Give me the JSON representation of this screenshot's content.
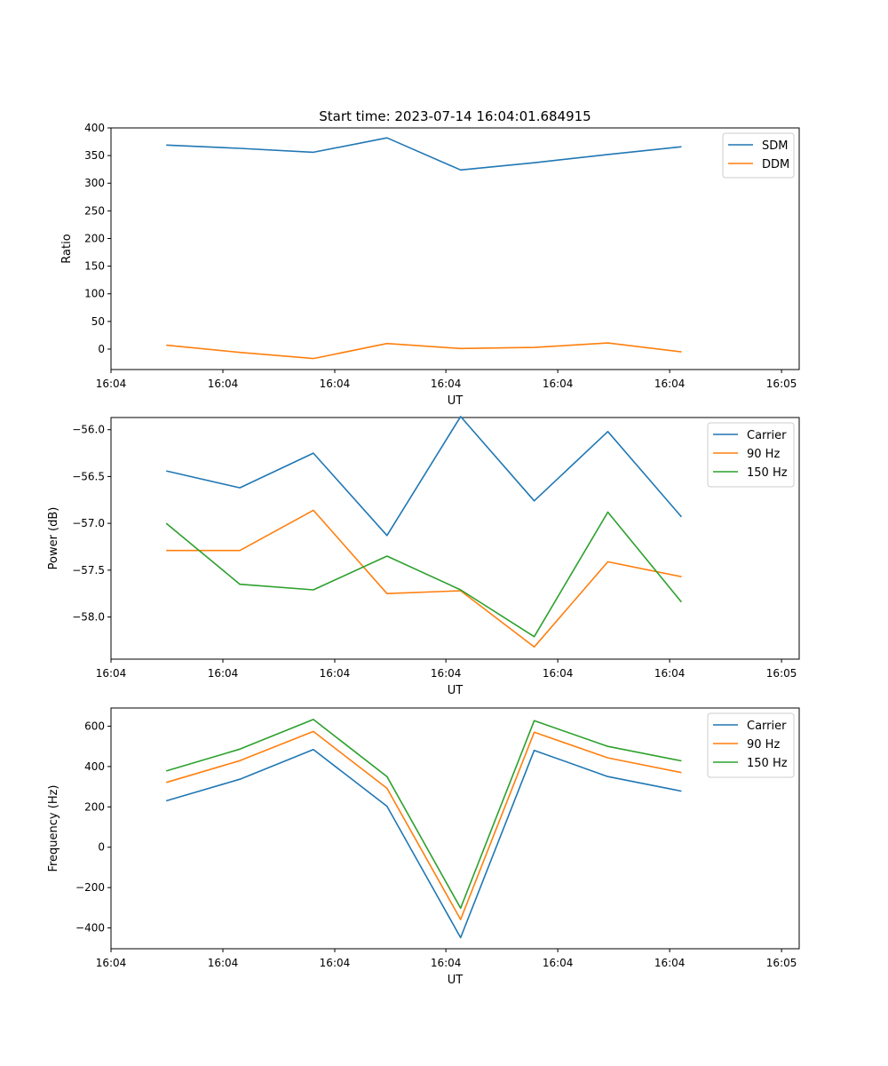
{
  "figure": {
    "title": "Start time: 2023-07-14 16:04:01.684915"
  },
  "colors": {
    "blue": "#1f77b4",
    "orange": "#ff7f0e",
    "green": "#2ca02c"
  },
  "chart_data": [
    {
      "type": "line",
      "title": "Start time: 2023-07-14 16:04:01.684915",
      "xlabel": "UT",
      "ylabel": "Ratio",
      "x": [
        0,
        1,
        2,
        3,
        4,
        5,
        6,
        7
      ],
      "xlim": [
        -0.75,
        8.6
      ],
      "xticks": [
        -0.75,
        0.77,
        2.29,
        3.8,
        5.32,
        6.84,
        8.36
      ],
      "xtick_labels": [
        "16:04",
        "16:04",
        "16:04",
        "16:04",
        "16:04",
        "16:04",
        "16:05"
      ],
      "ylim": [
        -37,
        400
      ],
      "yticks": [
        0,
        50,
        100,
        150,
        200,
        250,
        300,
        350,
        400
      ],
      "series": [
        {
          "name": "SDM",
          "color": "#1f77b4",
          "values": [
            369,
            363,
            356,
            382,
            324,
            337,
            352,
            366
          ]
        },
        {
          "name": "DDM",
          "color": "#ff7f0e",
          "values": [
            7,
            -6,
            -17,
            10,
            1,
            3,
            11,
            -5
          ]
        }
      ],
      "legend": "top-right"
    },
    {
      "type": "line",
      "title": "",
      "xlabel": "UT",
      "ylabel": "Power (dB)",
      "x": [
        0,
        1,
        2,
        3,
        4,
        5,
        6,
        7
      ],
      "xlim": [
        -0.75,
        8.6
      ],
      "xticks": [
        -0.75,
        0.77,
        2.29,
        3.8,
        5.32,
        6.84,
        8.36
      ],
      "xtick_labels": [
        "16:04",
        "16:04",
        "16:04",
        "16:04",
        "16:04",
        "16:04",
        "16:05"
      ],
      "ylim": [
        -58.45,
        -55.87
      ],
      "yticks": [
        -58.0,
        -57.5,
        -57.0,
        -56.5,
        -56.0
      ],
      "ytick_labels": [
        "−58.0",
        "−57.5",
        "−57.0",
        "−56.5",
        "−56.0"
      ],
      "series": [
        {
          "name": "Carrier",
          "color": "#1f77b4",
          "values": [
            -56.44,
            -56.62,
            -56.25,
            -57.13,
            -55.86,
            -56.76,
            -56.02,
            -56.93
          ]
        },
        {
          "name": "90 Hz",
          "color": "#ff7f0e",
          "values": [
            -57.29,
            -57.29,
            -56.86,
            -57.75,
            -57.72,
            -58.32,
            -57.41,
            -57.57
          ]
        },
        {
          "name": "150 Hz",
          "color": "#2ca02c",
          "values": [
            -57.0,
            -57.65,
            -57.71,
            -57.35,
            -57.71,
            -58.21,
            -56.88,
            -57.84
          ]
        }
      ],
      "legend": "top-right"
    },
    {
      "type": "line",
      "title": "",
      "xlabel": "UT",
      "ylabel": "Frequency (Hz)",
      "x": [
        0,
        1,
        2,
        3,
        4,
        5,
        6,
        7
      ],
      "xlim": [
        -0.75,
        8.6
      ],
      "xticks": [
        -0.75,
        0.77,
        2.29,
        3.8,
        5.32,
        6.84,
        8.36
      ],
      "xtick_labels": [
        "16:04",
        "16:04",
        "16:04",
        "16:04",
        "16:04",
        "16:04",
        "16:05"
      ],
      "ylim": [
        -503,
        690
      ],
      "yticks": [
        -400,
        -200,
        0,
        200,
        400,
        600
      ],
      "ytick_labels": [
        "−400",
        "−200",
        "0",
        "200",
        "400",
        "600"
      ],
      "series": [
        {
          "name": "Carrier",
          "color": "#1f77b4",
          "values": [
            230,
            337,
            484,
            203,
            -448,
            480,
            350,
            278
          ]
        },
        {
          "name": "90 Hz",
          "color": "#ff7f0e",
          "values": [
            321,
            429,
            574,
            292,
            -358,
            570,
            443,
            370
          ]
        },
        {
          "name": "150 Hz",
          "color": "#2ca02c",
          "values": [
            378,
            486,
            633,
            350,
            -302,
            627,
            500,
            428
          ]
        }
      ],
      "legend": "top-right"
    }
  ]
}
